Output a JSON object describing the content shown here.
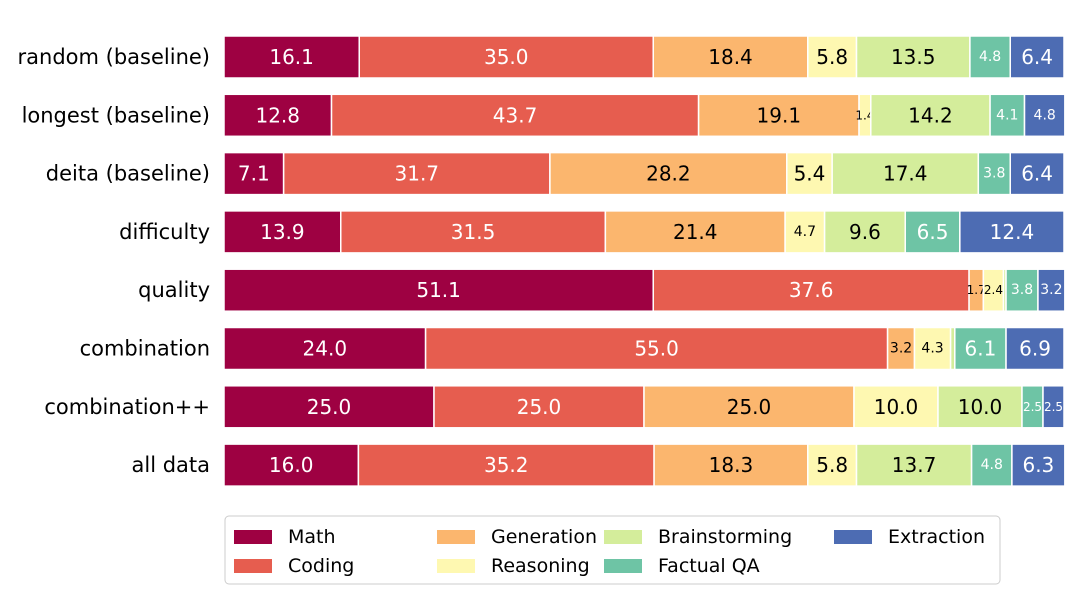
{
  "chart_data": {
    "type": "bar",
    "orientation": "horizontal",
    "stacked": true,
    "title": "",
    "xlabel": "",
    "ylabel": "",
    "xlim": [
      0,
      100
    ],
    "grid": false,
    "legend_position": "bottom",
    "categories": [
      "random (baseline)",
      "longest (baseline)",
      "deita (baseline)",
      "difficulty",
      "quality",
      "combination",
      "combination++",
      "all data"
    ],
    "series": [
      {
        "name": "Math",
        "color": "#9e0142",
        "values": [
          16.1,
          12.8,
          7.1,
          13.9,
          51.1,
          24.0,
          25.0,
          16.0
        ],
        "labels": [
          "16.1",
          "12.8",
          "7.1",
          "13.9",
          "51.1",
          "24.0",
          "25.0",
          "16.0"
        ]
      },
      {
        "name": "Coding",
        "color": "#e65d4f",
        "values": [
          35.0,
          43.7,
          31.7,
          31.5,
          37.6,
          55.0,
          25.0,
          35.2
        ],
        "labels": [
          "35.0",
          "43.7",
          "31.7",
          "31.5",
          "37.6",
          "55.0",
          "25.0",
          "35.2"
        ]
      },
      {
        "name": "Generation",
        "color": "#fbb66e",
        "values": [
          18.4,
          19.1,
          28.2,
          21.4,
          1.7,
          3.2,
          25.0,
          18.3
        ],
        "labels": [
          "18.4",
          "19.1",
          "28.2",
          "21.4",
          "1.7",
          "3.2",
          "25.0",
          "18.3"
        ]
      },
      {
        "name": "Reasoning",
        "color": "#fef8b1",
        "values": [
          5.8,
          1.4,
          5.4,
          4.7,
          2.4,
          4.3,
          10.0,
          5.8
        ],
        "labels": [
          "5.8",
          "1.4",
          "5.4",
          "4.7",
          "2.4",
          "4.3",
          "10.0",
          "5.8"
        ]
      },
      {
        "name": "Brainstorming",
        "color": "#d4ed9b",
        "values": [
          13.5,
          14.2,
          17.4,
          9.6,
          0.3,
          0.5,
          10.0,
          13.7
        ],
        "labels": [
          "13.5",
          "14.2",
          "17.4",
          "9.6",
          "",
          "",
          "10.0",
          "13.7"
        ]
      },
      {
        "name": "Factual QA",
        "color": "#6ec4a5",
        "values": [
          4.8,
          4.1,
          3.8,
          6.5,
          3.8,
          6.1,
          2.5,
          4.8
        ],
        "labels": [
          "4.8",
          "4.1",
          "3.8",
          "6.5",
          "3.8",
          "6.1",
          "2.5",
          "4.8"
        ]
      },
      {
        "name": "Extraction",
        "color": "#4d6cb3",
        "values": [
          6.4,
          4.8,
          6.4,
          12.4,
          3.2,
          6.9,
          2.5,
          6.3
        ],
        "labels": [
          "6.4",
          "4.8",
          "6.4",
          "12.4",
          "3.2",
          "6.9",
          "2.5",
          "6.3"
        ]
      }
    ]
  }
}
